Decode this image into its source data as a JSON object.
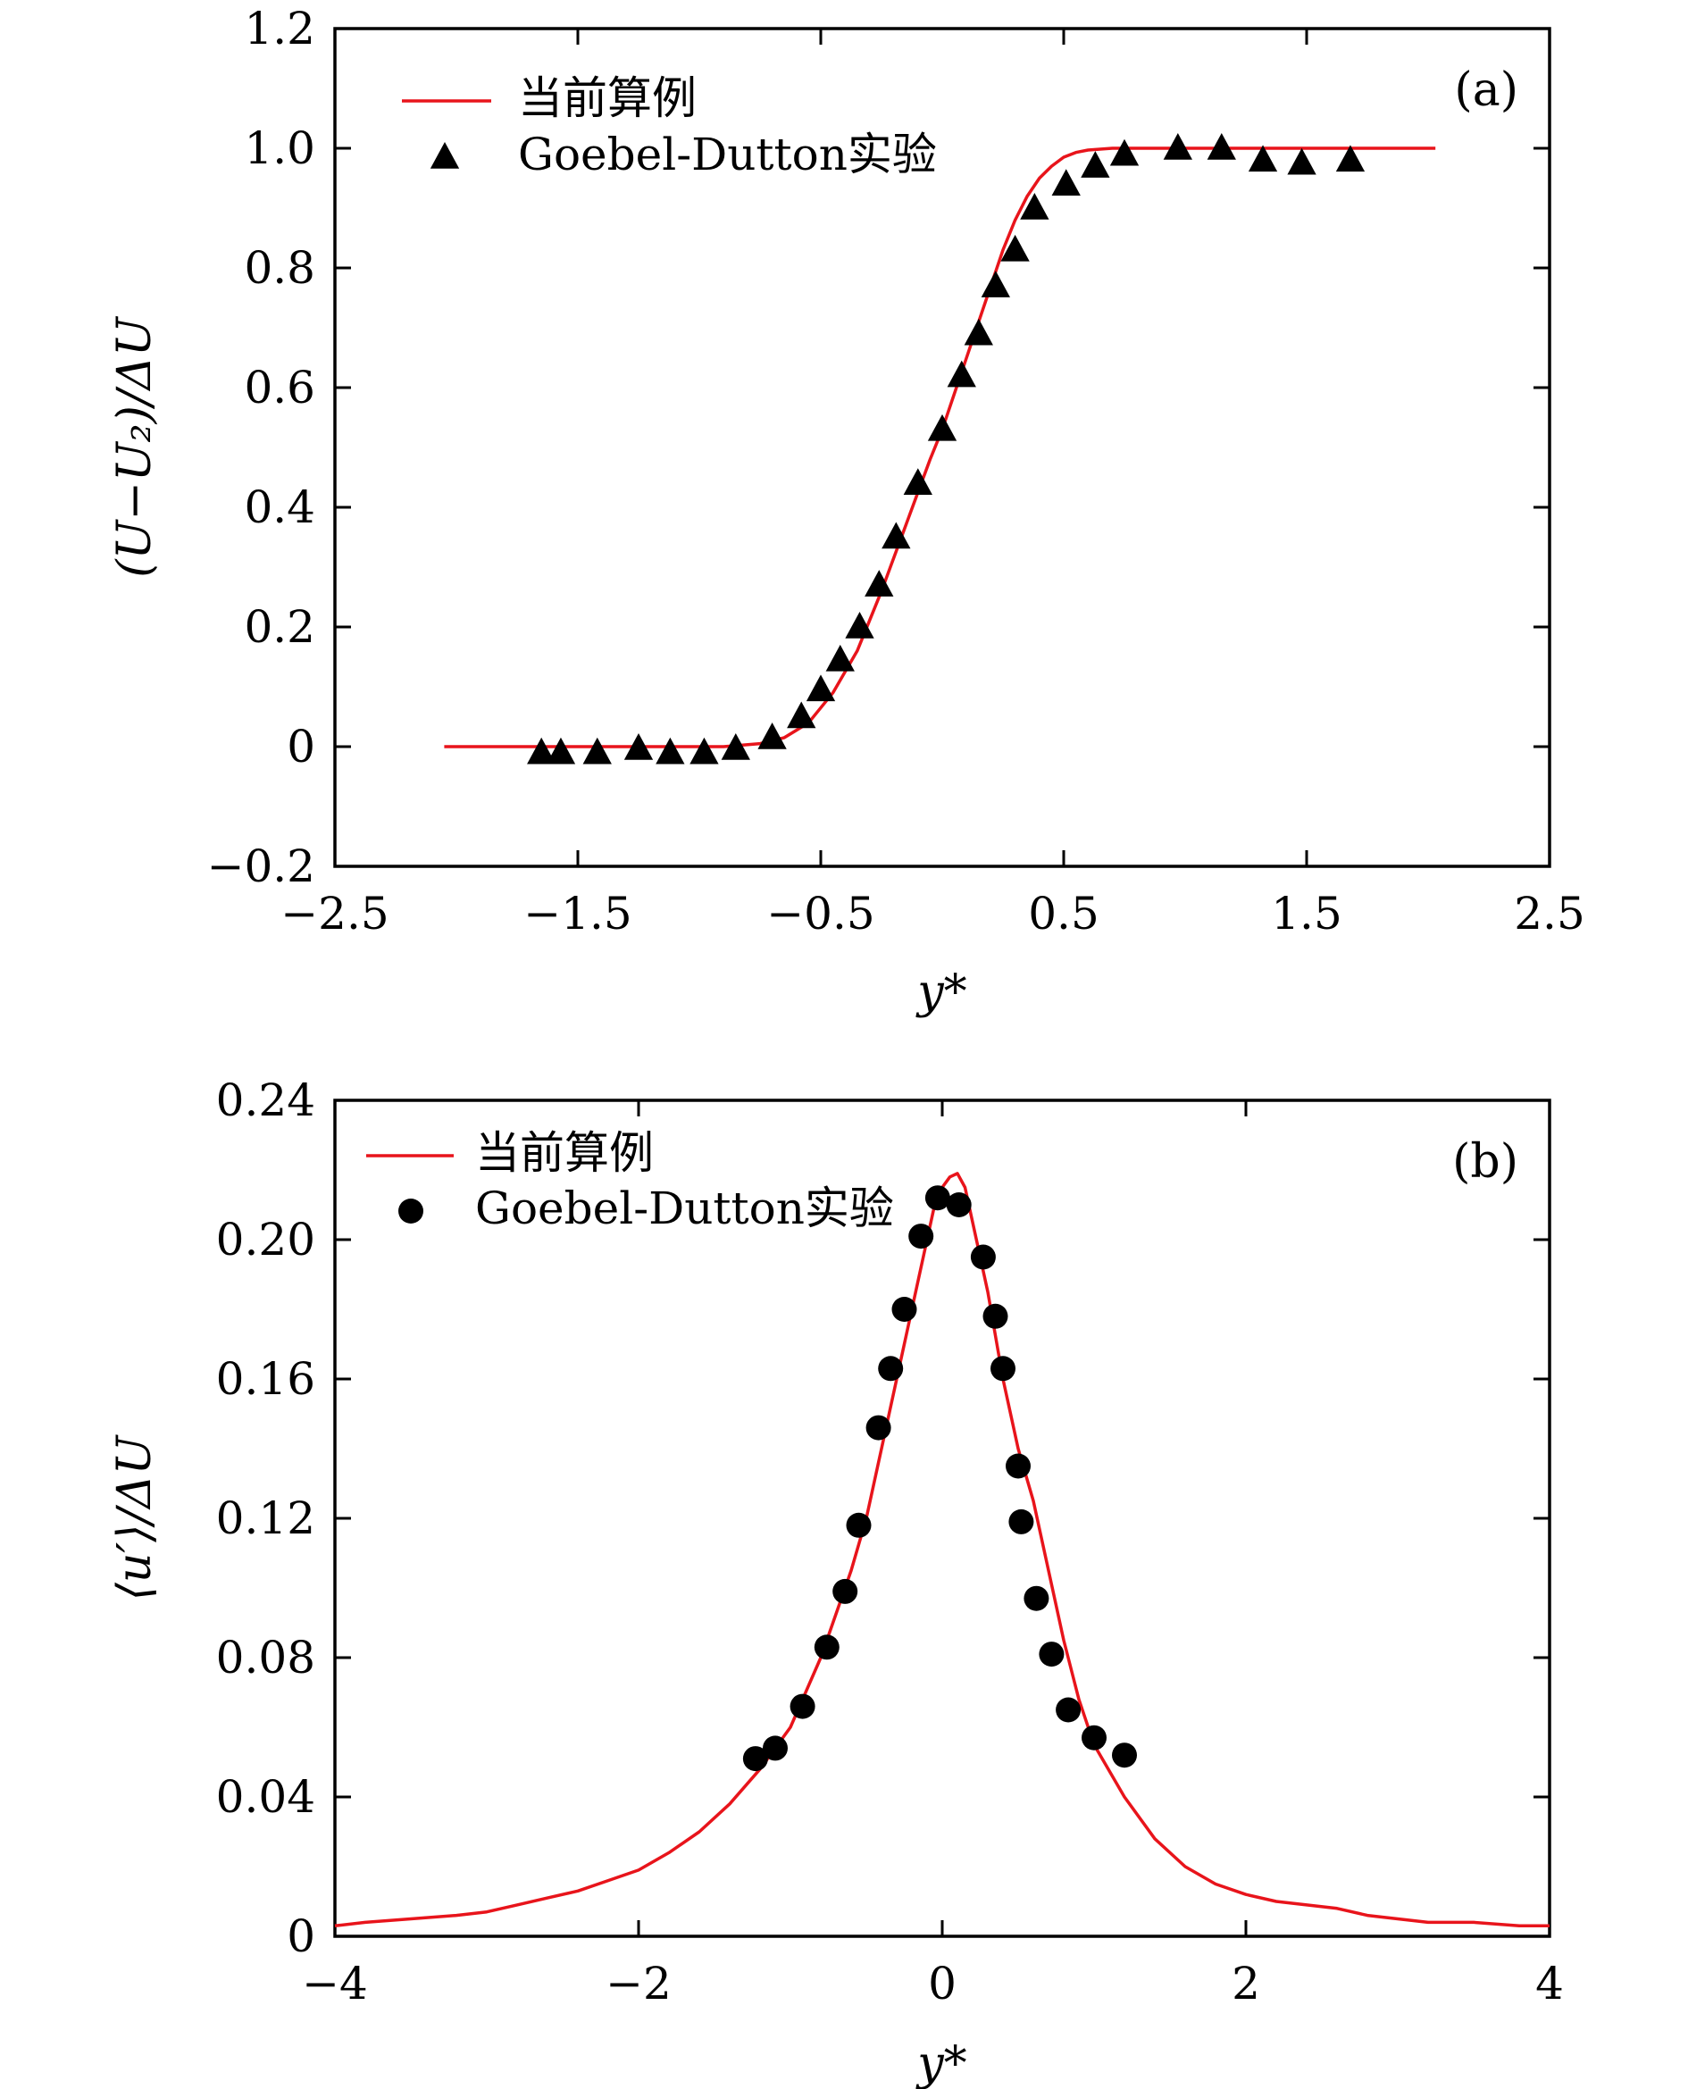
{
  "chart_data": [
    {
      "type": "line",
      "panel_label": "(a)",
      "xlabel": "y*",
      "ylabel": "(U−U₂)/ΔU",
      "xlim": [
        -2.5,
        2.5
      ],
      "ylim": [
        -0.2,
        1.2
      ],
      "xticks": [
        -2.5,
        -1.5,
        -0.5,
        0.5,
        1.5,
        2.5
      ],
      "xtick_labels": [
        "−2.5",
        "−1.5",
        "−0.5",
        "0.5",
        "1.5",
        "2.5"
      ],
      "yticks": [
        -0.2,
        0,
        0.2,
        0.4,
        0.6,
        0.8,
        1.0,
        1.2
      ],
      "ytick_labels": [
        "−0.2",
        "0",
        "0.2",
        "0.4",
        "0.6",
        "0.8",
        "1.0",
        "1.2"
      ],
      "legend_position": "top-left",
      "series": [
        {
          "name": "当前算例",
          "kind": "line",
          "color": "#e8141b",
          "x": [
            -2.05,
            -1.6,
            -1.2,
            -0.9,
            -0.75,
            -0.65,
            -0.55,
            -0.45,
            -0.35,
            -0.25,
            -0.15,
            -0.05,
            0.0,
            0.05,
            0.1,
            0.15,
            0.2,
            0.25,
            0.3,
            0.35,
            0.4,
            0.45,
            0.5,
            0.55,
            0.6,
            0.7,
            0.8,
            1.2,
            1.6,
            2.03
          ],
          "y": [
            0.0,
            0.0,
            0.0,
            0.0,
            0.005,
            0.015,
            0.04,
            0.09,
            0.16,
            0.26,
            0.37,
            0.48,
            0.53,
            0.59,
            0.65,
            0.71,
            0.77,
            0.83,
            0.88,
            0.92,
            0.95,
            0.97,
            0.985,
            0.993,
            0.997,
            1.0,
            1.0,
            1.0,
            1.0,
            1.0
          ]
        },
        {
          "name": "Goebel-Dutton实验",
          "kind": "scatter",
          "marker": "triangle",
          "color": "#000000",
          "x": [
            -1.65,
            -1.57,
            -1.42,
            -1.25,
            -1.12,
            -0.98,
            -0.85,
            -0.7,
            -0.58,
            -0.5,
            -0.42,
            -0.34,
            -0.26,
            -0.19,
            -0.1,
            0.0,
            0.08,
            0.15,
            0.22,
            0.3,
            0.38,
            0.51,
            0.63,
            0.75,
            0.97,
            1.15,
            1.32,
            1.48,
            1.68
          ],
          "y": [
            -0.01,
            -0.01,
            -0.01,
            -0.003,
            -0.01,
            -0.01,
            -0.003,
            0.015,
            0.05,
            0.095,
            0.145,
            0.2,
            0.27,
            0.35,
            0.44,
            0.53,
            0.62,
            0.69,
            0.77,
            0.83,
            0.9,
            0.94,
            0.97,
            0.99,
            1.0,
            1.0,
            0.98,
            0.975,
            0.98
          ]
        }
      ]
    },
    {
      "type": "line",
      "panel_label": "(b)",
      "xlabel": "y*",
      "ylabel": "⟨u′⟩/ΔU",
      "xlim": [
        -4,
        4
      ],
      "ylim": [
        0,
        0.24
      ],
      "xticks": [
        -4,
        -2,
        0,
        2,
        4
      ],
      "xtick_labels": [
        "−4",
        "−2",
        "0",
        "2",
        "4"
      ],
      "yticks": [
        0,
        0.04,
        0.08,
        0.12,
        0.16,
        0.2,
        0.24
      ],
      "ytick_labels": [
        "0",
        "0.04",
        "0.08",
        "0.12",
        "0.16",
        "0.20",
        "0.24"
      ],
      "legend_position": "top-left",
      "series": [
        {
          "name": "当前算例",
          "kind": "line",
          "color": "#e8141b",
          "x": [
            -4.0,
            -3.8,
            -3.5,
            -3.2,
            -3.0,
            -2.8,
            -2.6,
            -2.4,
            -2.2,
            -2.0,
            -1.8,
            -1.6,
            -1.4,
            -1.2,
            -1.0,
            -0.8,
            -0.6,
            -0.5,
            -0.4,
            -0.3,
            -0.2,
            -0.1,
            -0.05,
            0.0,
            0.05,
            0.1,
            0.15,
            0.2,
            0.3,
            0.4,
            0.5,
            0.6,
            0.7,
            0.8,
            0.9,
            1.0,
            1.2,
            1.4,
            1.6,
            1.8,
            2.0,
            2.2,
            2.4,
            2.6,
            2.8,
            3.0,
            3.2,
            3.5,
            3.8,
            4.0
          ],
          "y": [
            0.003,
            0.004,
            0.005,
            0.006,
            0.007,
            0.009,
            0.011,
            0.013,
            0.016,
            0.019,
            0.024,
            0.03,
            0.038,
            0.048,
            0.06,
            0.08,
            0.105,
            0.12,
            0.14,
            0.16,
            0.18,
            0.2,
            0.21,
            0.215,
            0.218,
            0.219,
            0.215,
            0.205,
            0.185,
            0.16,
            0.14,
            0.125,
            0.105,
            0.085,
            0.068,
            0.055,
            0.04,
            0.028,
            0.02,
            0.015,
            0.012,
            0.01,
            0.009,
            0.008,
            0.006,
            0.005,
            0.004,
            0.004,
            0.003,
            0.003
          ]
        },
        {
          "name": "Goebel-Dutton实验",
          "kind": "scatter",
          "marker": "circle",
          "color": "#000000",
          "x": [
            -1.23,
            -1.1,
            -0.92,
            -0.76,
            -0.64,
            -0.55,
            -0.42,
            -0.34,
            -0.25,
            -0.14,
            -0.03,
            0.11,
            0.27,
            0.35,
            0.4,
            0.5,
            0.52,
            0.62,
            0.72,
            0.83,
            1.0,
            1.2
          ],
          "y": [
            0.051,
            0.054,
            0.066,
            0.083,
            0.099,
            0.118,
            0.146,
            0.163,
            0.18,
            0.201,
            0.212,
            0.21,
            0.195,
            0.178,
            0.163,
            0.135,
            0.119,
            0.097,
            0.081,
            0.065,
            0.057,
            0.052
          ]
        }
      ]
    }
  ]
}
